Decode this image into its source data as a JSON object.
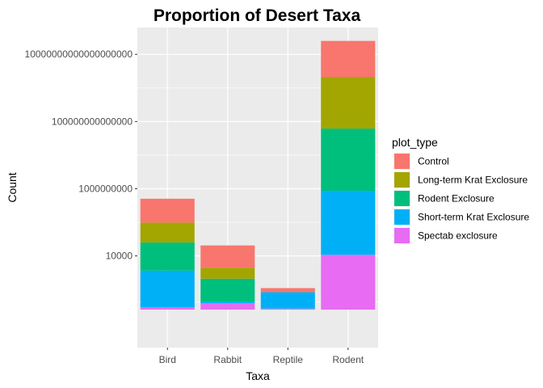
{
  "chart_data": {
    "type": "bar",
    "stacked": true,
    "title": "Proportion of Desert Taxa",
    "xlabel": "Taxa",
    "ylabel": "Count",
    "y_scale": "log10",
    "y_ticks": [
      {
        "value": 10000,
        "label": "10000"
      },
      {
        "value": 1000000000,
        "label": "1000000000"
      },
      {
        "value": 100000000000000,
        "label": "100000000000000"
      },
      {
        "value": 10000000000000000000,
        "label": "10000000000000000000"
      }
    ],
    "ylim": [
      0.0015,
      1e+21
    ],
    "categories": [
      "Bird",
      "Rabbit",
      "Reptile",
      "Rodent"
    ],
    "stack_base": 1,
    "stack_tops": [
      [
        1.5,
        800,
        100000,
        3000000,
        180000000
      ],
      [
        3,
        4,
        200,
        1300,
        60000
      ],
      [
        1.2,
        20,
        20,
        20,
        40
      ],
      [
        12000,
        700000000,
        30000000000000.0,
        2e+17,
        1e+20
      ]
    ],
    "series": [
      {
        "name": "Spectab exclosure",
        "color": "#E76BF3"
      },
      {
        "name": "Short-term Krat Exclosure",
        "color": "#00B0F6"
      },
      {
        "name": "Rodent Exclosure",
        "color": "#00BF7D"
      },
      {
        "name": "Long-term Krat Exclosure",
        "color": "#A3A500"
      },
      {
        "name": "Control",
        "color": "#F8766D"
      }
    ],
    "grid": true,
    "legend": {
      "title": "plot_type",
      "position": "right",
      "entries": [
        {
          "name": "Control",
          "color": "#F8766D"
        },
        {
          "name": "Long-term Krat Exclosure",
          "color": "#A3A500"
        },
        {
          "name": "Rodent Exclosure",
          "color": "#00BF7D"
        },
        {
          "name": "Short-term Krat Exclosure",
          "color": "#00B0F6"
        },
        {
          "name": "Spectab exclosure",
          "color": "#E76BF3"
        }
      ]
    }
  }
}
